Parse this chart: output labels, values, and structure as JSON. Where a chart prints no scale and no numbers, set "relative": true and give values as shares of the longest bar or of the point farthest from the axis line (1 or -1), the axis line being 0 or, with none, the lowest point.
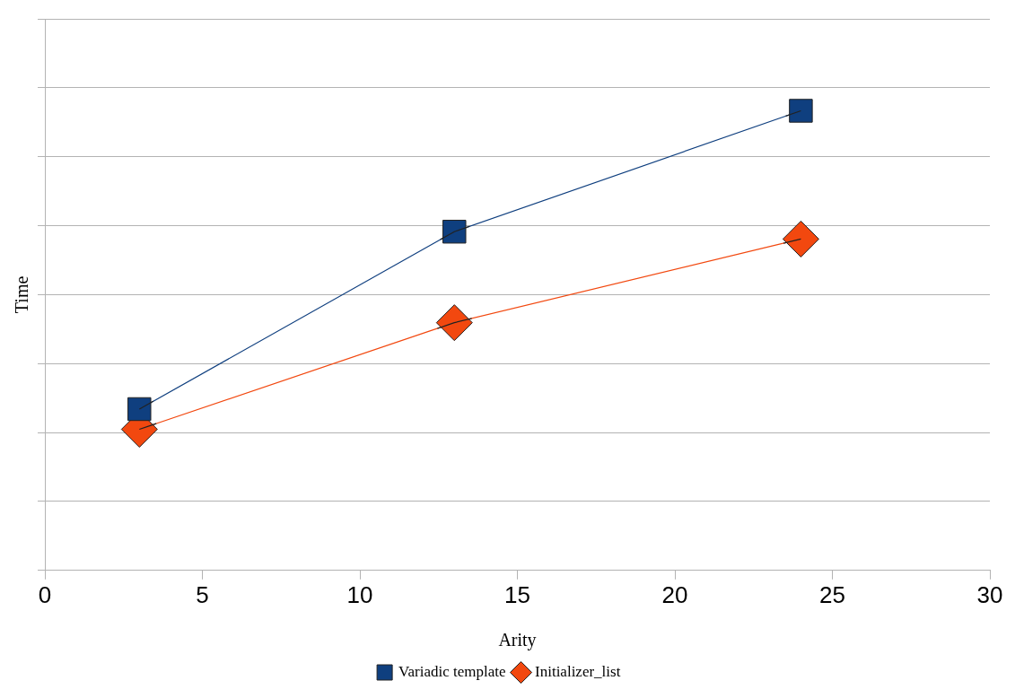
{
  "chart_data": {
    "type": "line",
    "xlabel": "Arity",
    "ylabel": "Time",
    "relative": true,
    "xlim": [
      0,
      30
    ],
    "xticks": [
      0,
      5,
      10,
      15,
      20,
      25,
      30
    ],
    "grid": "y",
    "legend": "bottom",
    "series": [
      {
        "name": "Variadic template",
        "color": "#0f3f7f",
        "marker": "square",
        "x": [
          3,
          13,
          24
        ],
        "values": [
          0.351,
          0.737,
          1
        ]
      },
      {
        "name": "Initializer_list",
        "color": "#f2480f",
        "marker": "diamond",
        "x": [
          3,
          13,
          24
        ],
        "values": [
          0.307,
          0.539,
          0.721
        ]
      }
    ]
  }
}
